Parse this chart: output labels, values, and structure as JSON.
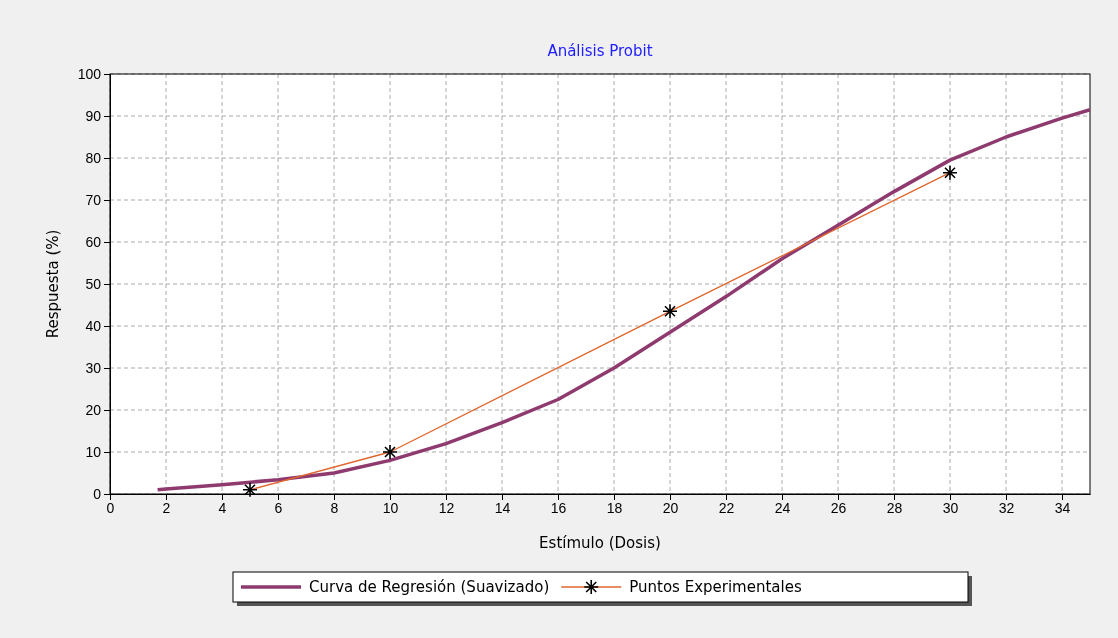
{
  "chart_data": {
    "type": "line",
    "title": "Análisis Probit",
    "xlabel": "Estímulo (Dosis)",
    "ylabel": "Respuesta (%)",
    "xlim": [
      0,
      35
    ],
    "xticks": [
      0,
      2,
      4,
      6,
      8,
      10,
      12,
      14,
      16,
      18,
      20,
      22,
      24,
      26,
      28,
      30,
      32,
      34
    ],
    "ylim": [
      0,
      100
    ],
    "yticks": [
      0,
      10,
      20,
      30,
      40,
      50,
      60,
      70,
      80,
      90,
      100
    ],
    "grid": true,
    "legend": "bottom",
    "series": [
      {
        "name": "Curva de Regresión (Suavizado)",
        "color": "#8e3a6e",
        "marker": "none",
        "x": [
          1.7,
          2,
          4,
          6,
          8,
          10,
          12,
          14,
          16,
          18,
          20,
          22,
          24,
          26,
          28,
          30,
          32,
          34,
          35
        ],
        "values": [
          1,
          1.2,
          2.2,
          3.4,
          5,
          8,
          12,
          17,
          22.5,
          30,
          38.5,
          47,
          56,
          64,
          72,
          79.5,
          85,
          89.5,
          91.5
        ]
      },
      {
        "name": "Puntos Experimentales",
        "color": "#e0662e",
        "marker": "cross",
        "x": [
          5,
          10,
          20,
          30
        ],
        "values": [
          1,
          10,
          43.5,
          76.5
        ]
      }
    ]
  }
}
